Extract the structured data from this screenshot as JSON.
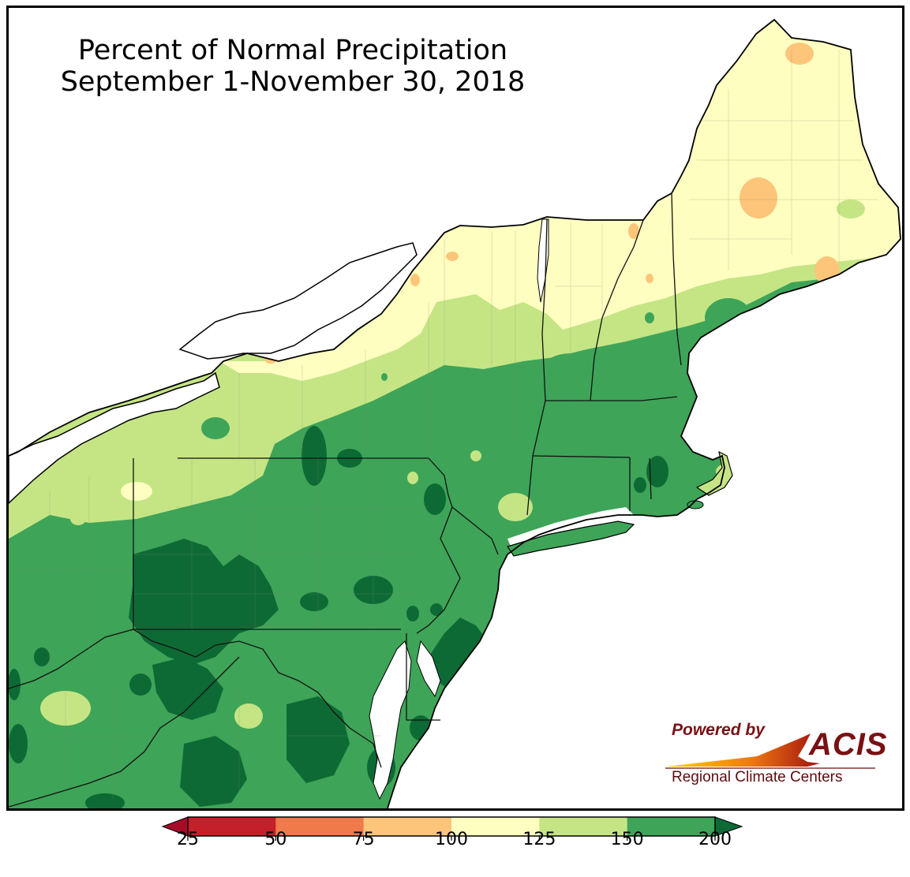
{
  "title": {
    "line1": "Percent of Normal Precipitation",
    "line2": "September 1-November 30, 2018"
  },
  "logo": {
    "powered_by": "Powered by",
    "brand": "ACIS",
    "subtitle": "Regional Climate Centers"
  },
  "legend": {
    "ticks": [
      "25",
      "50",
      "75",
      "100",
      "125",
      "150",
      "200"
    ],
    "bins": [
      {
        "from": 25,
        "to": 50,
        "color": "#c4202a"
      },
      {
        "from": 50,
        "to": 75,
        "color": "#f07a4a"
      },
      {
        "from": 75,
        "to": 100,
        "color": "#fdc57a"
      },
      {
        "from": 100,
        "to": 125,
        "color": "#fefec0"
      },
      {
        "from": 125,
        "to": 150,
        "color": "#c5e585"
      },
      {
        "from": 150,
        "to": 200,
        "color": "#3ea458"
      }
    ],
    "under_color": "#a50c28",
    "over_color": "#0f6a36"
  },
  "colors": {
    "water": "#ffffff",
    "darkest_green": "#0e6a35",
    "green": "#3ea458",
    "light_green": "#c5e585",
    "pale_yellow": "#fefec0",
    "orange": "#fdc57a",
    "logo_red": "#7a1014"
  }
}
